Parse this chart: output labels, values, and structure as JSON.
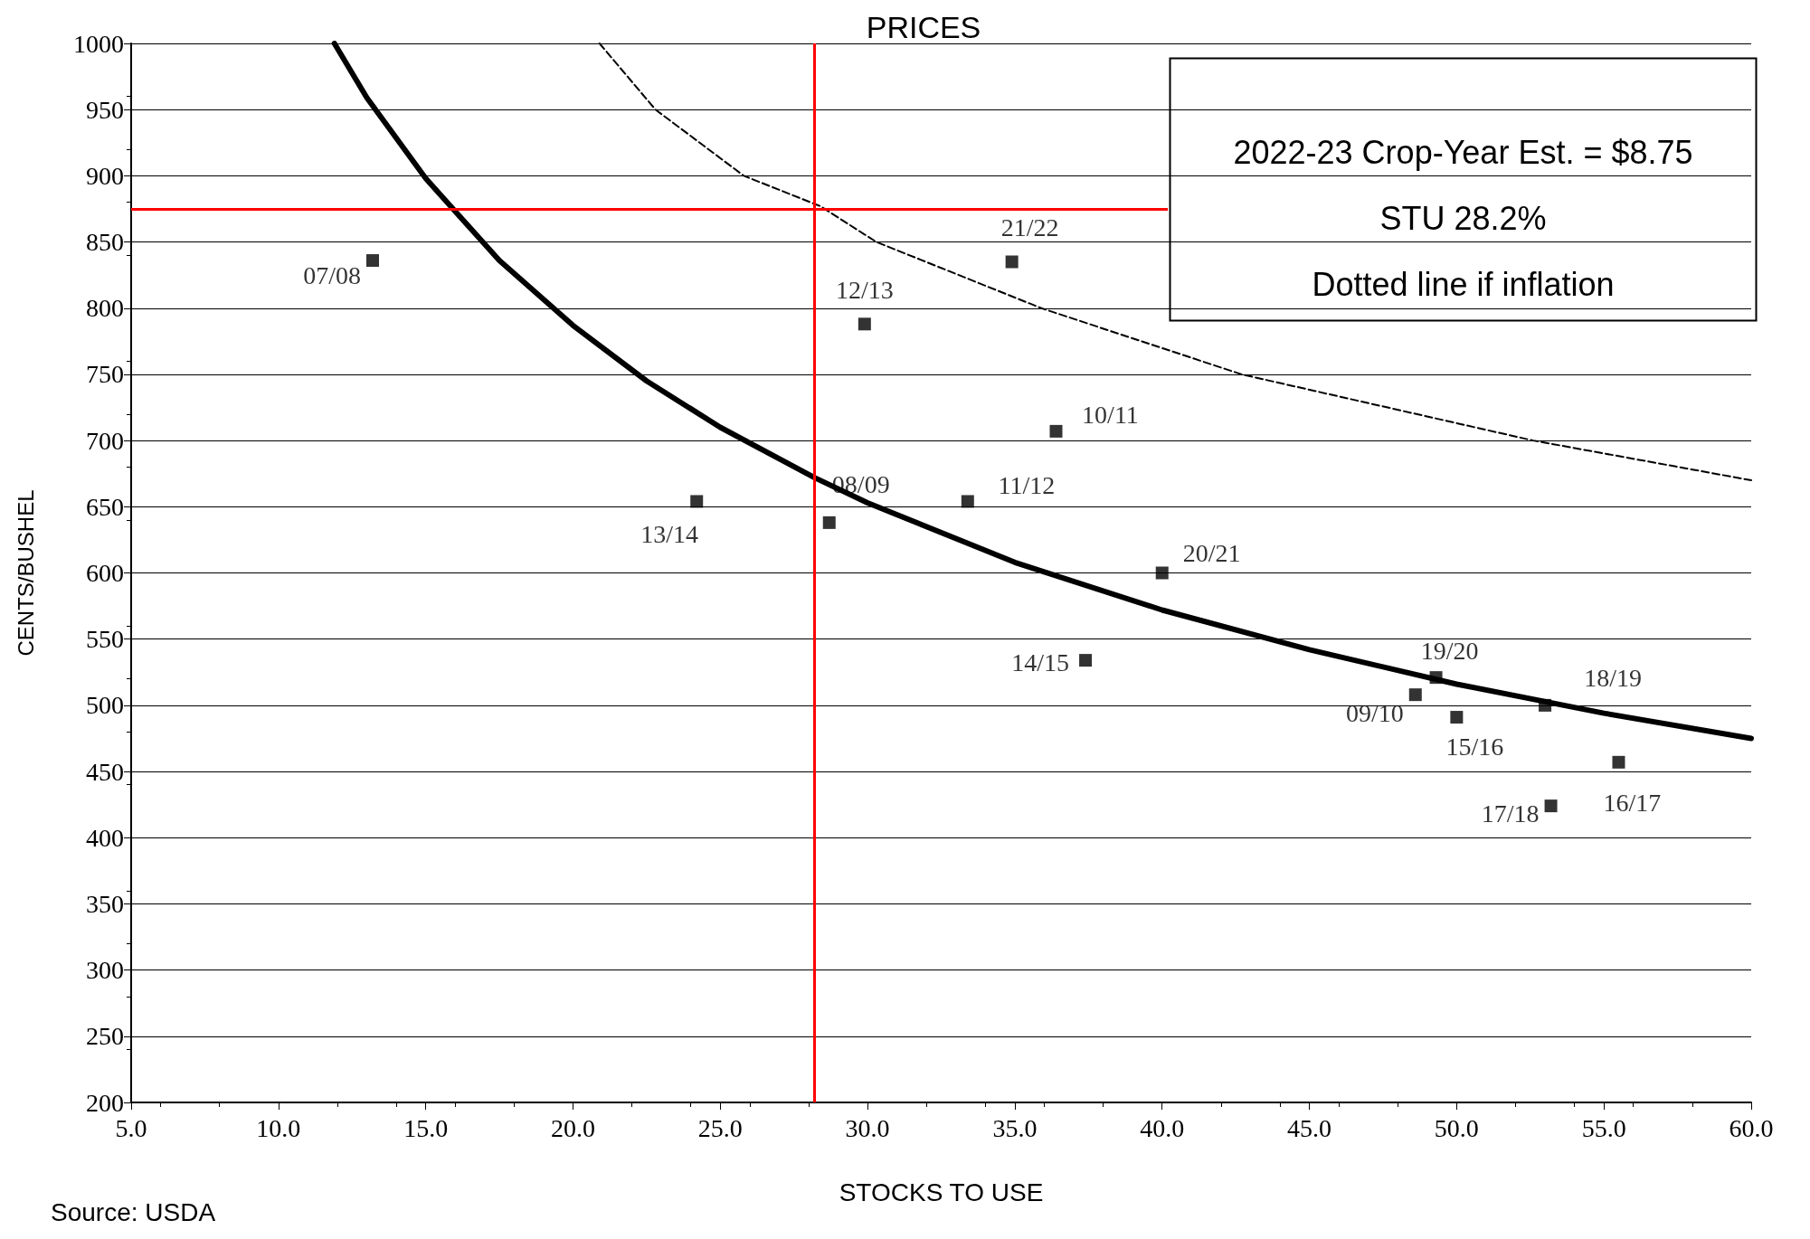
{
  "chart_data": {
    "type": "scatter",
    "title": "PRICES",
    "xlabel": "STOCKS TO USE",
    "ylabel": "CENTS/BUSHEL",
    "xlim": [
      5,
      60
    ],
    "xticks": [
      {
        "value": 5,
        "label": "5.0"
      },
      {
        "value": 10,
        "label": "10.0"
      },
      {
        "value": 15,
        "label": "15.0"
      },
      {
        "value": 20,
        "label": "20.0"
      },
      {
        "value": 25,
        "label": "25.0"
      },
      {
        "value": 30,
        "label": "30.0"
      },
      {
        "value": 35,
        "label": "35.0"
      },
      {
        "value": 40,
        "label": "40.0"
      },
      {
        "value": 45,
        "label": "45.0"
      },
      {
        "value": 50,
        "label": "50.0"
      },
      {
        "value": 55,
        "label": "55.0"
      },
      {
        "value": 60,
        "label": "60.0"
      }
    ],
    "ylim": [
      200,
      1000
    ],
    "yticks": [
      200,
      250,
      300,
      350,
      400,
      450,
      500,
      550,
      600,
      650,
      700,
      750,
      800,
      850,
      900,
      950,
      1000
    ],
    "grid": "y",
    "legend": false,
    "marker": "square",
    "series": [
      {
        "type": "scatter",
        "color": "#000000",
        "x": [
          13.2,
          24.2,
          28.7,
          29.9,
          33.4,
          34.9,
          36.4,
          37.4,
          40.0,
          48.6,
          49.3,
          50.0,
          53.0,
          53.2,
          55.5
        ],
        "values": [
          836,
          654,
          638,
          788,
          654,
          835,
          707,
          534,
          600,
          508,
          521,
          491,
          500,
          424,
          457
        ]
      },
      {
        "type": "line",
        "color": "#000000",
        "marker": "none",
        "line_style": "solid",
        "x": [
          11.9,
          13,
          15,
          17.5,
          20,
          22.5,
          25,
          28.2,
          30,
          35,
          40,
          45,
          50,
          55,
          60
        ],
        "values": [
          1000,
          959,
          898,
          836,
          787,
          745,
          710,
          672,
          653,
          608,
          572,
          542,
          516,
          494,
          475
        ]
      },
      {
        "type": "line",
        "color": "#000000",
        "marker": "none",
        "line_style": "dashed",
        "x": [
          20.9,
          22.8,
          25.8,
          28.4,
          30.3,
          35.9,
          42.7,
          52.6,
          60
        ],
        "values": [
          1000,
          950,
          900,
          877,
          850,
          800,
          750,
          700,
          670
        ]
      }
    ],
    "ref_lines": [
      {
        "axis": "y",
        "value": 875,
        "color": "#ff0000"
      },
      {
        "axis": "x",
        "value": 28.2,
        "color": "#ff0000"
      }
    ],
    "annotations": [
      {
        "text": "07/08",
        "x": 13.2,
        "y": 836
      },
      {
        "text": "13/14",
        "x": 24.2,
        "y": 654
      },
      {
        "text": "08/09",
        "x": 28.7,
        "y": 638
      },
      {
        "text": "12/13",
        "x": 29.9,
        "y": 788
      },
      {
        "text": "11/12",
        "x": 33.4,
        "y": 654
      },
      {
        "text": "21/22",
        "x": 34.9,
        "y": 835
      },
      {
        "text": "10/11",
        "x": 36.4,
        "y": 707
      },
      {
        "text": "14/15",
        "x": 37.4,
        "y": 534
      },
      {
        "text": "20/21",
        "x": 40.0,
        "y": 600
      },
      {
        "text": "09/10",
        "x": 48.6,
        "y": 508
      },
      {
        "text": "19/20",
        "x": 49.3,
        "y": 521
      },
      {
        "text": "15/16",
        "x": 50.0,
        "y": 491
      },
      {
        "text": "18/19",
        "x": 53.0,
        "y": 500
      },
      {
        "text": "17/18",
        "x": 53.2,
        "y": 424
      },
      {
        "text": "16/17",
        "x": 55.5,
        "y": 457
      },
      "2022-23 Crop-Year Est. = $8.75\nSTU 28.2%\nDotted line if inflation",
      "Source: USDA"
    ]
  }
}
